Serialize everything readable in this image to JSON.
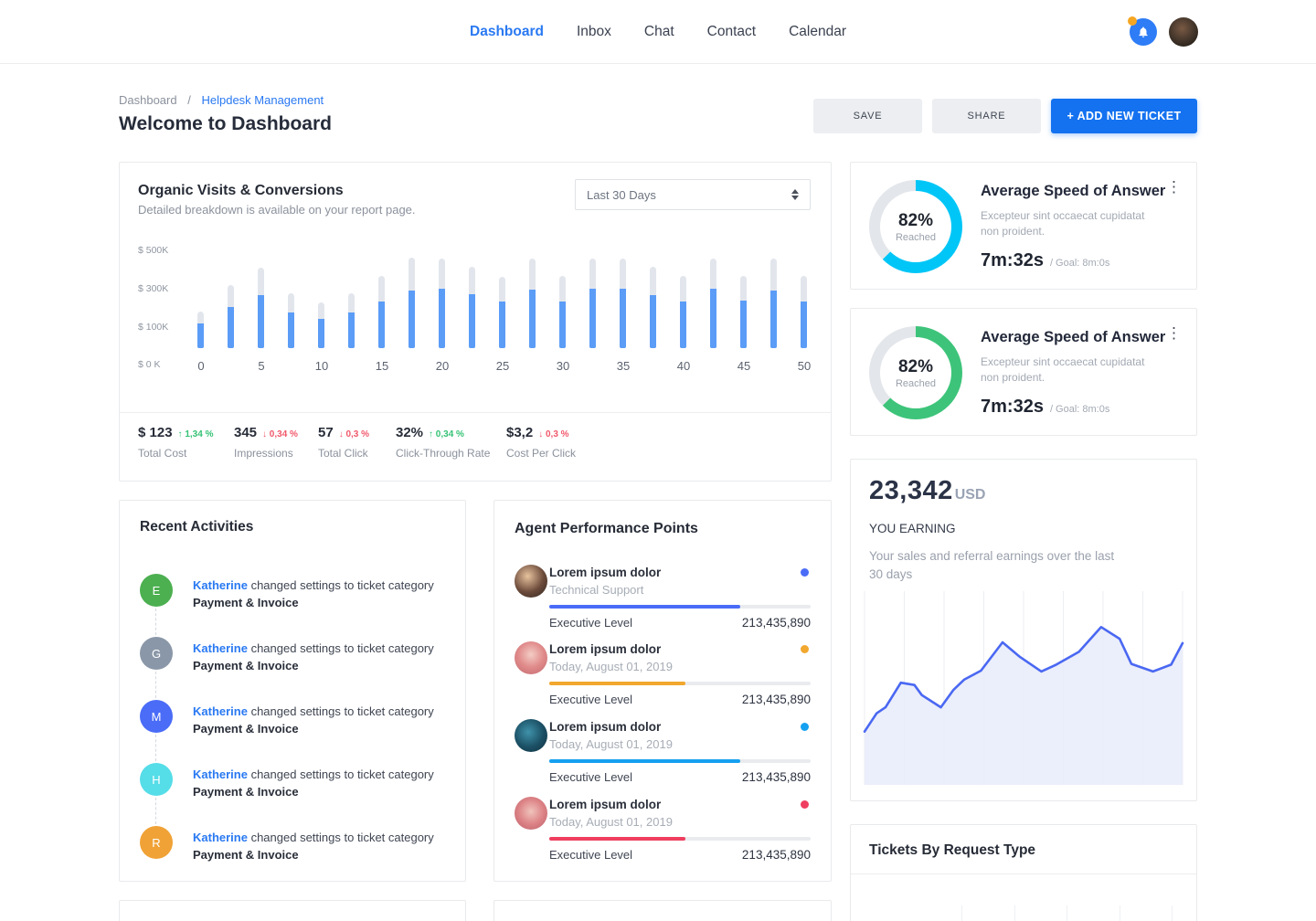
{
  "nav": {
    "items": [
      {
        "label": "Dashboard",
        "active": true
      },
      {
        "label": "Inbox",
        "active": false
      },
      {
        "label": "Chat",
        "active": false
      },
      {
        "label": "Contact",
        "active": false
      },
      {
        "label": "Calendar",
        "active": false
      }
    ],
    "notification_icon": "bell-icon",
    "notification_badge_color": "#f5a623",
    "notification_circle_color": "#2e7cf6"
  },
  "header": {
    "breadcrumb": {
      "parent": "Dashboard",
      "separator": "/",
      "current": "Helpdesk Management"
    },
    "title": "Welcome to Dashboard",
    "save_label": "SAVE",
    "share_label": "SHARE",
    "add_ticket_label": "+ ADD NEW TICKET",
    "primary_color": "#1472f0"
  },
  "organic": {
    "title": "Organic Visits & Conversions",
    "subtitle": "Detailed breakdown is available on your report page.",
    "range_selected": "Last 30 Days",
    "chart_data": {
      "type": "bar",
      "title": "Organic Visits & Conversions",
      "x": [
        0,
        2.5,
        5,
        7.5,
        10,
        12.5,
        15,
        17.5,
        20,
        22.5,
        25,
        27.5,
        30,
        32.5,
        35,
        37.5,
        40,
        42.5,
        45,
        47.5,
        50
      ],
      "series": [
        {
          "name": "total",
          "color": "#e2e6ec",
          "values_K": [
            210,
            360,
            460,
            310,
            260,
            310,
            410,
            515,
            512,
            461,
            408,
            508,
            411,
            508,
            508,
            461,
            411,
            512,
            411,
            508,
            411
          ]
        },
        {
          "name": "converted",
          "color": "#5b9cf7",
          "values_K": [
            140,
            235,
            302,
            205,
            168,
            201,
            268,
            330,
            336,
            305,
            268,
            332,
            268,
            336,
            336,
            302,
            268,
            336,
            272,
            330,
            268
          ]
        }
      ],
      "y_tick_labels": [
        "$ 500K",
        "$ 300K",
        "$ 100K",
        "$ 0 K"
      ],
      "x_tick_labels": [
        "0",
        "5",
        "10",
        "15",
        "20",
        "25",
        "30",
        "35",
        "40",
        "45",
        "50"
      ],
      "ylim_K": [
        0,
        500
      ],
      "grid": false
    },
    "stats": [
      {
        "value": "$ 123",
        "arrow": "↑",
        "change": "1,34 %",
        "direction": "up",
        "label": "Total Cost"
      },
      {
        "value": "345",
        "arrow": "↓",
        "change": "0,34 %",
        "direction": "down",
        "label": "Impressions"
      },
      {
        "value": "57",
        "arrow": "↓",
        "change": "0,3 %",
        "direction": "down",
        "label": "Total Click"
      },
      {
        "value": "32%",
        "arrow": "↑",
        "change": "0,34 %",
        "direction": "up",
        "label": "Click-Through Rate"
      },
      {
        "value": "$3,2",
        "arrow": "↓",
        "change": "0,3 %",
        "direction": "down",
        "label": "Cost Per Click"
      }
    ]
  },
  "activities": {
    "title": "Recent Activities",
    "items": [
      {
        "initial": "E",
        "color": "#4caf50",
        "user": "Katherine",
        "action": " changed settings to ticket category",
        "category": "Payment & Invoice"
      },
      {
        "initial": "G",
        "color": "#8a97a8",
        "user": "Katherine",
        "action": " changed settings to ticket category",
        "category": "Payment & Invoice"
      },
      {
        "initial": "M",
        "color": "#4a6cf7",
        "user": "Katherine",
        "action": " changed settings to ticket category",
        "category": "Payment & Invoice"
      },
      {
        "initial": "H",
        "color": "#55dde8",
        "user": "Katherine",
        "action": " changed settings to ticket category",
        "category": "Payment & Invoice"
      },
      {
        "initial": "R",
        "color": "#f0a236",
        "user": "Katherine",
        "action": " changed settings to ticket category",
        "category": "Payment & Invoice"
      }
    ]
  },
  "agents": {
    "title": "Agent Performance Points",
    "rows": [
      {
        "name": "Lorem ipsum dolor",
        "subtitle": "Technical Support",
        "level_label": "Executive Level",
        "points": "213,435,890",
        "color": "#4a6cf7",
        "pct": 73
      },
      {
        "name": "Lorem ipsum dolor",
        "subtitle": "Today, August 01, 2019",
        "level_label": "Executive Level",
        "points": "213,435,890",
        "color": "#f2a72e",
        "pct": 52
      },
      {
        "name": "Lorem ipsum dolor",
        "subtitle": "Today, August 01, 2019",
        "level_label": "Executive Level",
        "points": "213,435,890",
        "color": "#15a0f0",
        "pct": 73
      },
      {
        "name": "Lorem ipsum dolor",
        "subtitle": "Today, August 01, 2019",
        "level_label": "Executive Level",
        "points": "213,435,890",
        "color": "#ef3e5f",
        "pct": 52
      }
    ]
  },
  "speed_cards": [
    {
      "title": "Average Speed of Answer",
      "percent": "82%",
      "percent_label": "Reached",
      "description": "Excepteur sint occaecat cupidatat non proident.",
      "time": "7m:32s",
      "goal": "/ Goal: 8m:0s",
      "color": "#00c6f7",
      "sweep_deg": 225,
      "menu_icon": "⋮"
    },
    {
      "title": "Average Speed of Answer",
      "percent": "82%",
      "percent_label": "Reached",
      "description": "Excepteur sint occaecat cupidatat non proident.",
      "time": "7m:32s",
      "goal": "/ Goal: 8m:0s",
      "color": "#3dc47a",
      "sweep_deg": 225,
      "menu_icon": "⋮"
    }
  ],
  "earnings": {
    "amount": "23,342",
    "currency": "USD",
    "caption": "YOU EARNING",
    "description": "Your sales and referral earnings over the last 30 days",
    "chart_data": {
      "type": "area",
      "line_color": "#4a68f2",
      "fill_color": "#e9ecfb",
      "grid": "vertical",
      "gridline_count": 9,
      "points_pct": [
        [
          0,
          26.5
        ],
        [
          3.8,
          35.6
        ],
        [
          6.6,
          38.6
        ],
        [
          11.4,
          50.8
        ],
        [
          15.7,
          49.7
        ],
        [
          18,
          44.7
        ],
        [
          24,
          38.6
        ],
        [
          28,
          47.3
        ],
        [
          31.3,
          52.3
        ],
        [
          36.6,
          56.8
        ],
        [
          43.4,
          70.9
        ],
        [
          48.9,
          63.6
        ],
        [
          55.6,
          56.4
        ],
        [
          60.3,
          59.8
        ],
        [
          67.4,
          66.2
        ],
        [
          74.4,
          78.5
        ],
        [
          80.2,
          72.7
        ],
        [
          83.9,
          60.2
        ],
        [
          90.7,
          56.4
        ],
        [
          96.4,
          59.8
        ],
        [
          100,
          70.5
        ]
      ]
    }
  },
  "tickets": {
    "title": "Tickets By Request Type"
  }
}
